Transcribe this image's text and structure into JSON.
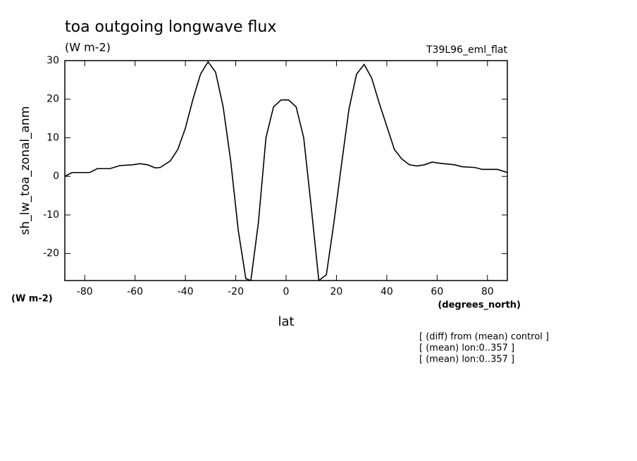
{
  "chart_data": {
    "type": "line",
    "title": "toa outgoing longwave flux",
    "subtitle": "(W m-2)",
    "dataset": "T39L96_eml_flat",
    "ylabel": "sh_lw_toa_zonal_anm",
    "y_units": "(W m-2)",
    "xlabel": "lat",
    "x_units": "(degrees_north)",
    "notes": [
      "[ (diff) from (mean) control ]",
      "[ (mean) lon:0..357 ]",
      "[ (mean) lon:0..357 ]"
    ],
    "x": [
      -87.9,
      -85,
      -81,
      -78,
      -75,
      -70,
      -66,
      -61,
      -58,
      -55,
      -52,
      -50,
      -46,
      -43,
      -40,
      -37,
      -34,
      -31,
      -28,
      -25,
      -22,
      -19,
      -16,
      -14,
      -11,
      -8,
      -5,
      -2,
      1,
      4,
      7,
      10,
      13,
      16,
      19,
      22,
      25,
      28,
      31,
      34,
      37,
      40,
      43,
      46,
      49,
      52,
      55,
      58,
      61,
      64,
      67,
      70,
      75,
      78,
      84,
      87.9
    ],
    "series": [
      {
        "color": "#000000",
        "values": [
          0,
          1,
          1,
          1,
          2,
          2,
          2.8,
          3,
          3.3,
          3,
          2.2,
          2.3,
          4,
          7,
          12.5,
          20,
          26.5,
          29.7,
          27,
          18,
          4,
          -14,
          -26.5,
          -27,
          -12,
          10,
          18,
          19.8,
          19.8,
          18,
          10,
          -8,
          -27,
          -25.5,
          -12,
          3,
          17.5,
          26.5,
          29,
          25.5,
          19,
          13,
          7,
          4.5,
          3,
          2.7,
          3,
          3.7,
          3.4,
          3.2,
          3,
          2.5,
          2.3,
          1.8,
          1.8,
          1
        ]
      }
    ],
    "xlim": [
      -87.9,
      87.9
    ],
    "ylim": [
      -27,
      30
    ],
    "xticks": [
      -80,
      -60,
      -40,
      -20,
      0,
      20,
      40,
      60,
      80
    ],
    "yticks": [
      -20,
      -10,
      0,
      10,
      20,
      30
    ]
  }
}
